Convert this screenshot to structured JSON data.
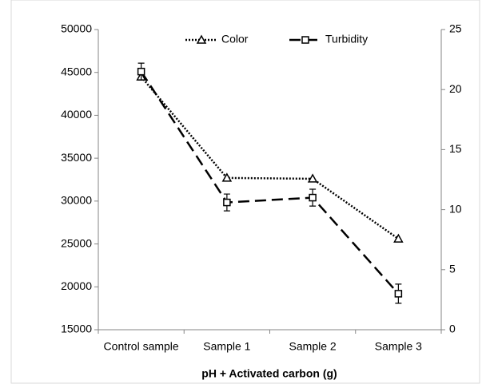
{
  "chart_data": {
    "type": "line",
    "x_label": "pH + Activated carbon (g)",
    "categories": [
      "Control sample",
      "Sample 1",
      "Sample 2",
      "Sample 3"
    ],
    "series": [
      {
        "name": "Color",
        "color": "#000000",
        "marker": "triangle",
        "dash": "dotted",
        "axis": "y",
        "values": [
          44500,
          32700,
          32600,
          25600
        ]
      },
      {
        "name": "Turbidity",
        "color": "#000000",
        "marker": "square",
        "dash": "dashed",
        "axis": "y2",
        "values": [
          21.5,
          10.6,
          11.0,
          3.0
        ],
        "errors": [
          0.7,
          0.7,
          0.7,
          0.8
        ]
      }
    ],
    "ylim": [
      15000,
      50000
    ],
    "yticks": [
      15000,
      20000,
      25000,
      30000,
      35000,
      40000,
      45000,
      50000
    ],
    "y2lim": [
      0,
      25
    ],
    "y2ticks": [
      0,
      5,
      10,
      15,
      20,
      25
    ],
    "legend": "top"
  }
}
